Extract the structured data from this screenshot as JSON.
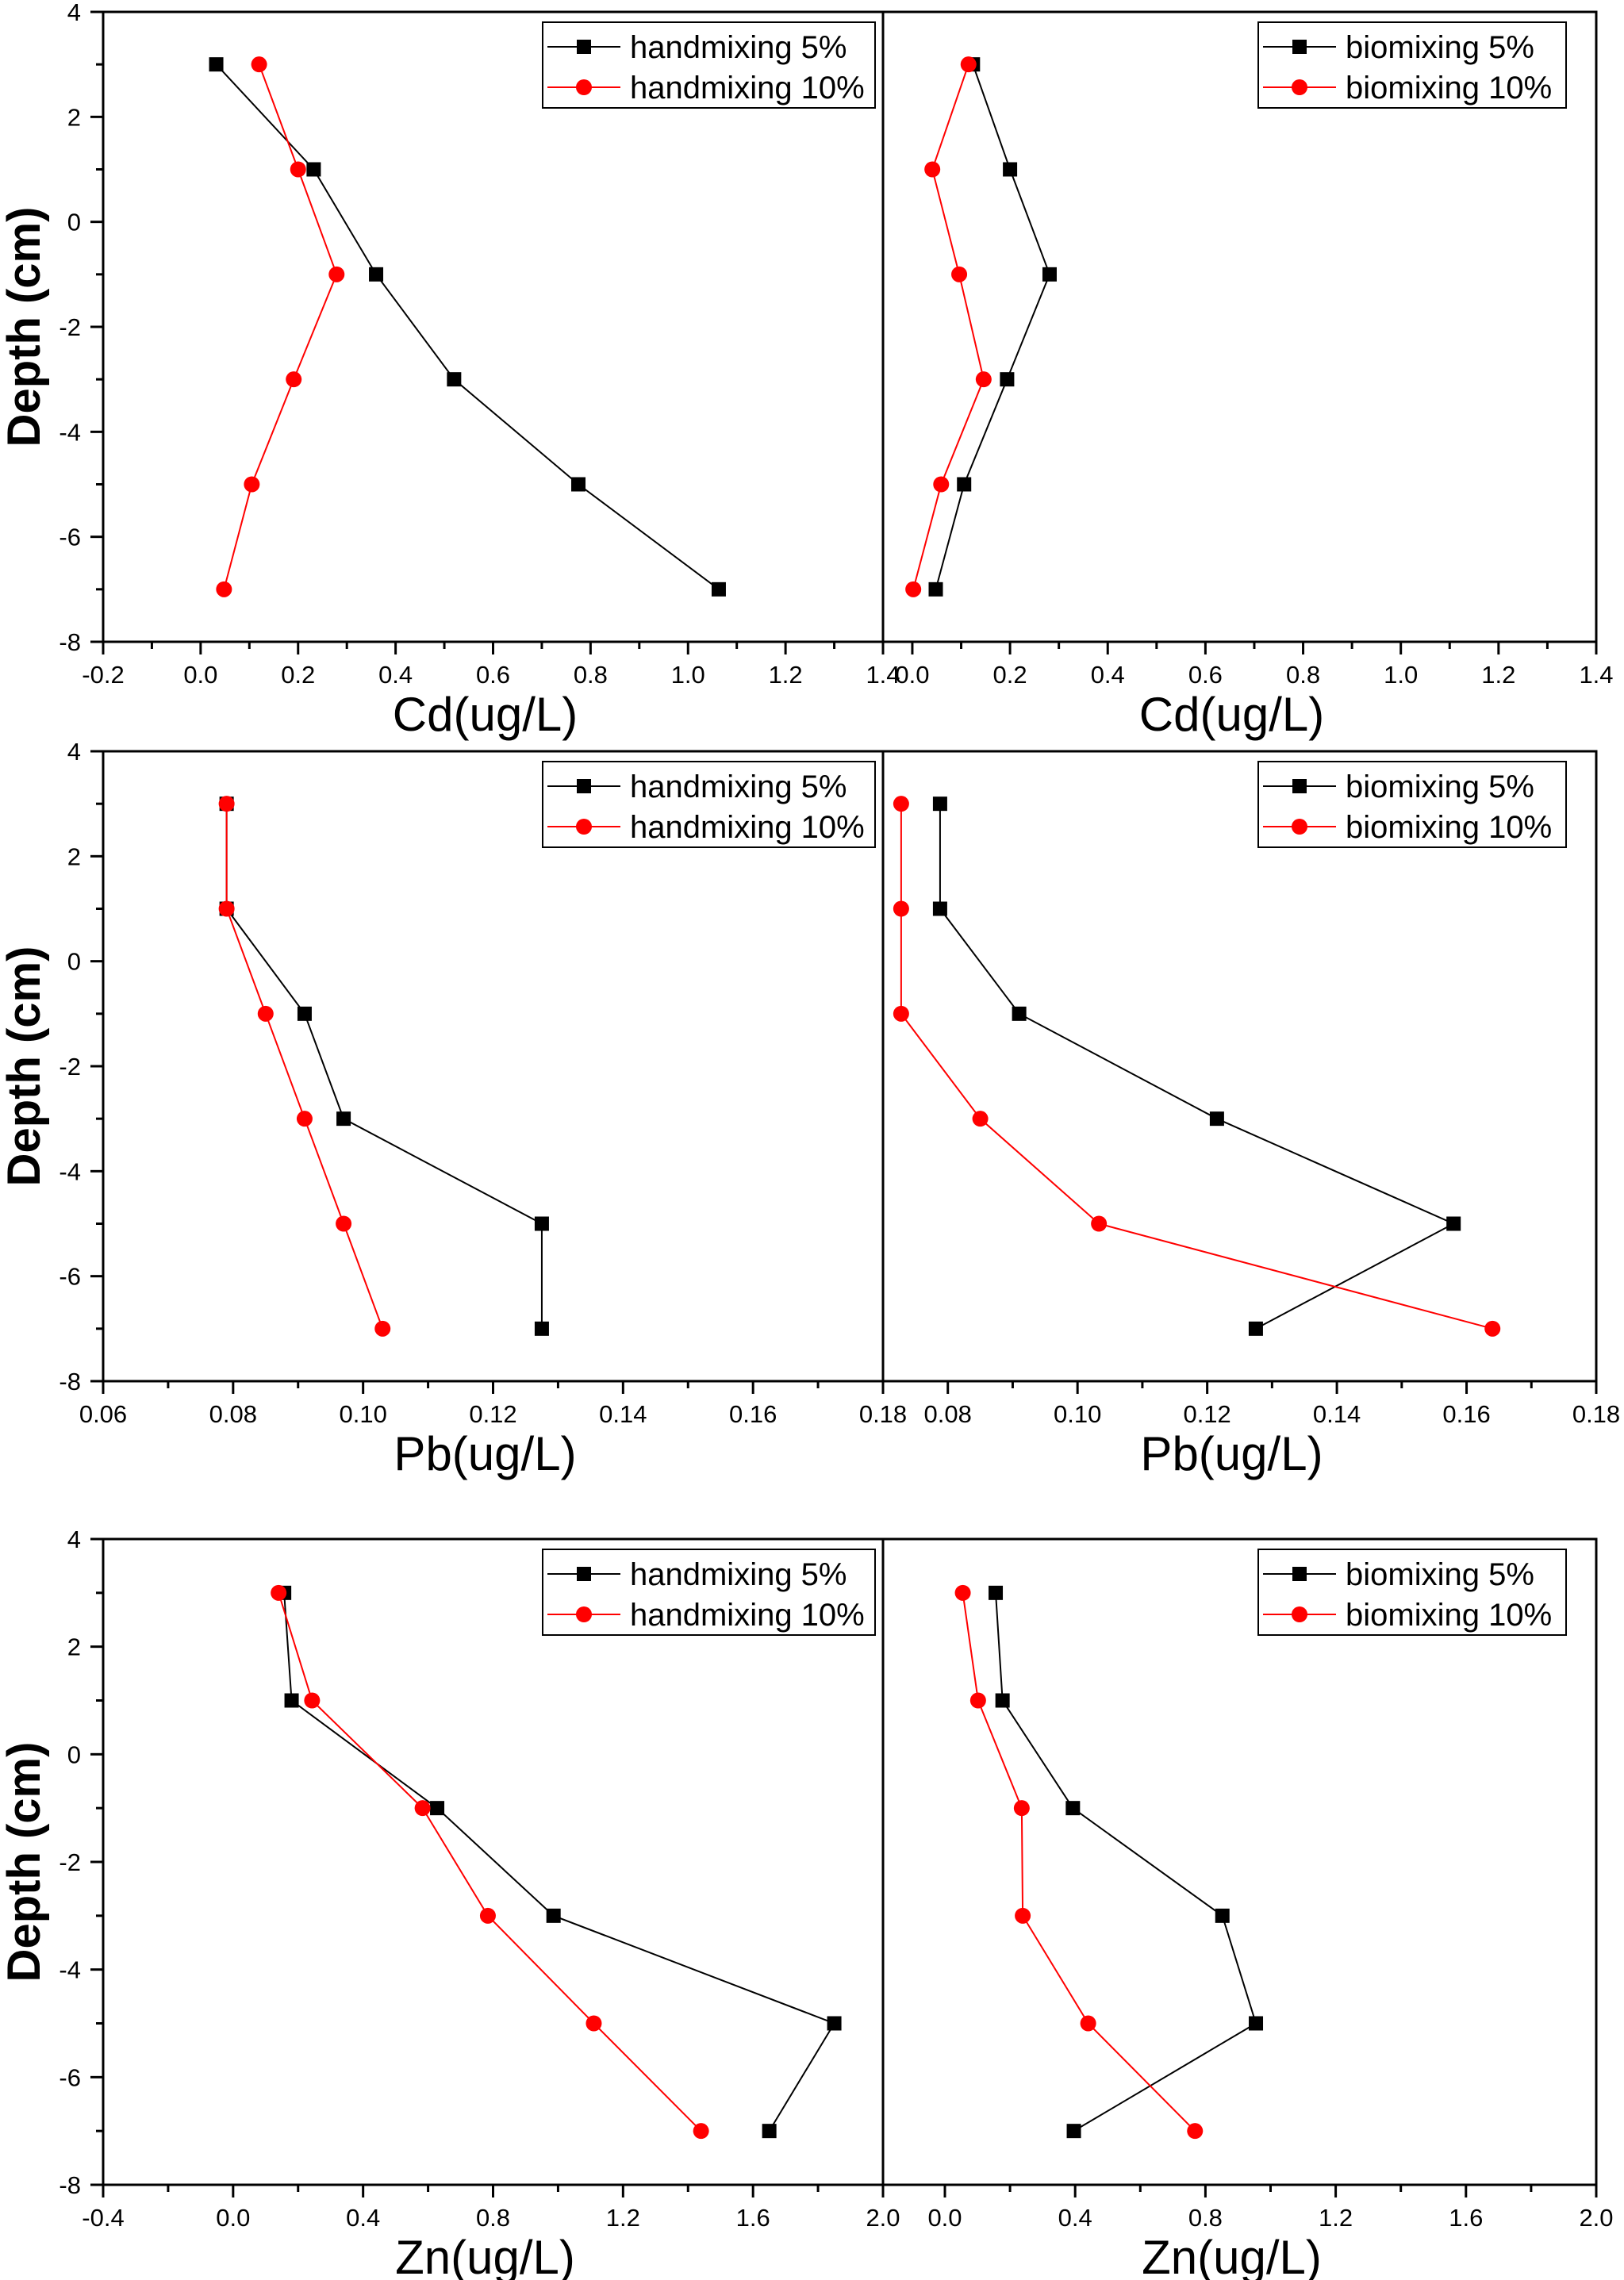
{
  "figure": {
    "y_axis_title": "Depth (cm)",
    "colors": {
      "series_5": "#000000",
      "series_10": "#ff0000",
      "axis": "#000000",
      "background": "#ffffff"
    }
  },
  "chart_data": [
    {
      "id": "cd-handmixing",
      "type": "line",
      "title": "",
      "xlabel": "Cd(ug/L)",
      "ylabel": "Depth (cm)",
      "xlim": [
        -0.2,
        1.4
      ],
      "ylim": [
        -8,
        4
      ],
      "xticks": [
        -0.2,
        0.0,
        0.2,
        0.4,
        0.6,
        0.8,
        1.0,
        1.2,
        1.4
      ],
      "xtick_labels": [
        "-0.2",
        "0.0",
        "0.2",
        "0.4",
        "0.6",
        "0.8",
        "1.0",
        "1.2",
        "1.4"
      ],
      "yticks": [
        4,
        2,
        0,
        -2,
        -4,
        -6,
        -8
      ],
      "ytick_labels": [
        "4",
        "2",
        "0",
        "-2",
        "-4",
        "-6",
        "-8"
      ],
      "legend": "top-right",
      "grid": false,
      "series": [
        {
          "name": "handmixing 5%",
          "marker": "square",
          "color": "#000000",
          "x": [
            0.032,
            0.232,
            0.36,
            0.52,
            0.775,
            1.063
          ],
          "y": [
            3,
            1,
            -1,
            -3,
            -5,
            -7
          ]
        },
        {
          "name": "handmixing 10%",
          "marker": "circle",
          "color": "#ff0000",
          "x": [
            0.12,
            0.2,
            0.279,
            0.191,
            0.105,
            0.048
          ],
          "y": [
            3,
            1,
            -1,
            -3,
            -5,
            -7
          ]
        }
      ]
    },
    {
      "id": "cd-biomixing",
      "type": "line",
      "title": "",
      "xlabel": "Cd(ug/L)",
      "ylabel": "",
      "xlim": [
        -0.06,
        1.4
      ],
      "ylim": [
        -8,
        4
      ],
      "xticks": [
        0.0,
        0.2,
        0.4,
        0.6,
        0.8,
        1.0,
        1.2,
        1.4
      ],
      "xtick_labels": [
        "0.0",
        "0.2",
        "0.4",
        "0.6",
        "0.8",
        "1.0",
        "1.2",
        "1.4"
      ],
      "yticks": [],
      "ytick_labels": [],
      "legend": "top-right",
      "grid": false,
      "series": [
        {
          "name": "biomixing 5%",
          "marker": "square",
          "color": "#000000",
          "x": [
            0.124,
            0.2,
            0.281,
            0.194,
            0.106,
            0.048
          ],
          "y": [
            3,
            1,
            -1,
            -3,
            -5,
            -7
          ]
        },
        {
          "name": "biomixing 10%",
          "marker": "circle",
          "color": "#ff0000",
          "x": [
            0.115,
            0.041,
            0.096,
            0.146,
            0.059,
            0.002
          ],
          "y": [
            3,
            1,
            -1,
            -3,
            -5,
            -7
          ]
        }
      ]
    },
    {
      "id": "pb-handmixing",
      "type": "line",
      "title": "",
      "xlabel": "Pb(ug/L)",
      "ylabel": "Depth (cm)",
      "xlim": [
        0.06,
        0.18
      ],
      "ylim": [
        -8,
        4
      ],
      "xticks": [
        0.06,
        0.08,
        0.1,
        0.12,
        0.14,
        0.16,
        0.18
      ],
      "xtick_labels": [
        "0.06",
        "0.08",
        "0.10",
        "0.12",
        "0.14",
        "0.16",
        "0.18"
      ],
      "yticks": [
        4,
        2,
        0,
        -2,
        -4,
        -6,
        -8
      ],
      "ytick_labels": [
        "4",
        "2",
        "0",
        "-2",
        "-4",
        "-6",
        "-8"
      ],
      "legend": "top-right",
      "grid": false,
      "series": [
        {
          "name": "handmixing 5%",
          "marker": "square",
          "color": "#000000",
          "x": [
            0.079,
            0.079,
            0.091,
            0.097,
            0.1275,
            0.1275
          ],
          "y": [
            3,
            1,
            -1,
            -3,
            -5,
            -7
          ]
        },
        {
          "name": "handmixing 10%",
          "marker": "circle",
          "color": "#ff0000",
          "x": [
            0.079,
            0.079,
            0.085,
            0.091,
            0.097,
            0.103
          ],
          "y": [
            3,
            1,
            -1,
            -3,
            -5,
            -7
          ]
        }
      ]
    },
    {
      "id": "pb-biomixing",
      "type": "line",
      "title": "",
      "xlabel": "Pb(ug/L)",
      "ylabel": "",
      "xlim": [
        0.07,
        0.18
      ],
      "ylim": [
        -8,
        4
      ],
      "xticks": [
        0.08,
        0.1,
        0.12,
        0.14,
        0.16,
        0.18
      ],
      "xtick_labels": [
        "0.08",
        "0.10",
        "0.12",
        "0.14",
        "0.16",
        "0.18"
      ],
      "yticks": [],
      "ytick_labels": [],
      "legend": "top-right",
      "grid": false,
      "series": [
        {
          "name": "biomixing 5%",
          "marker": "square",
          "color": "#000000",
          "x": [
            0.0788,
            0.0788,
            0.091,
            0.1215,
            0.158,
            0.1275
          ],
          "y": [
            3,
            1,
            -1,
            -3,
            -5,
            -7
          ]
        },
        {
          "name": "biomixing 10%",
          "marker": "circle",
          "color": "#ff0000",
          "x": [
            0.0728,
            0.0728,
            0.0728,
            0.085,
            0.1033,
            0.164
          ],
          "y": [
            3,
            1,
            -1,
            -3,
            -5,
            -7
          ]
        }
      ]
    },
    {
      "id": "zn-handmixing",
      "type": "line",
      "title": "",
      "xlabel": "Zn(ug/L)",
      "ylabel": "Depth (cm)",
      "xlim": [
        -0.4,
        2.0
      ],
      "ylim": [
        -8,
        4
      ],
      "xticks": [
        -0.4,
        0.0,
        0.4,
        0.8,
        1.2,
        1.6,
        2.0
      ],
      "xtick_labels": [
        "-0.4",
        "0.0",
        "0.4",
        "0.8",
        "1.2",
        "1.6",
        "2.0"
      ],
      "yticks": [
        4,
        2,
        0,
        -2,
        -4,
        -6,
        -8
      ],
      "ytick_labels": [
        "4",
        "2",
        "0",
        "-2",
        "-4",
        "-6",
        "-8"
      ],
      "legend": "top-right",
      "grid": false,
      "series": [
        {
          "name": "handmixing 5%",
          "marker": "square",
          "color": "#000000",
          "x": [
            0.157,
            0.18,
            0.628,
            0.986,
            1.85,
            1.65
          ],
          "y": [
            3,
            1,
            -1,
            -3,
            -5,
            -7
          ]
        },
        {
          "name": "handmixing 10%",
          "marker": "circle",
          "color": "#ff0000",
          "x": [
            0.14,
            0.243,
            0.583,
            0.784,
            1.11,
            1.44
          ],
          "y": [
            3,
            1,
            -1,
            -3,
            -5,
            -7
          ]
        }
      ]
    },
    {
      "id": "zn-biomixing",
      "type": "line",
      "title": "",
      "xlabel": "Zn(ug/L)",
      "ylabel": "",
      "xlim": [
        -0.19,
        2.0
      ],
      "ylim": [
        -8,
        4
      ],
      "xticks": [
        0.0,
        0.4,
        0.8,
        1.2,
        1.6,
        2.0
      ],
      "xtick_labels": [
        "0.0",
        "0.4",
        "0.8",
        "1.2",
        "1.6",
        "2.0"
      ],
      "yticks": [],
      "ytick_labels": [],
      "legend": "top-right",
      "grid": false,
      "series": [
        {
          "name": "biomixing 5%",
          "marker": "square",
          "color": "#000000",
          "x": [
            0.156,
            0.177,
            0.393,
            0.852,
            0.955,
            0.396
          ],
          "y": [
            3,
            1,
            -1,
            -3,
            -5,
            -7
          ]
        },
        {
          "name": "biomixing 10%",
          "marker": "circle",
          "color": "#ff0000",
          "x": [
            0.055,
            0.102,
            0.236,
            0.239,
            0.44,
            0.768
          ],
          "y": [
            3,
            1,
            -1,
            -3,
            -5,
            -7
          ]
        }
      ]
    }
  ]
}
